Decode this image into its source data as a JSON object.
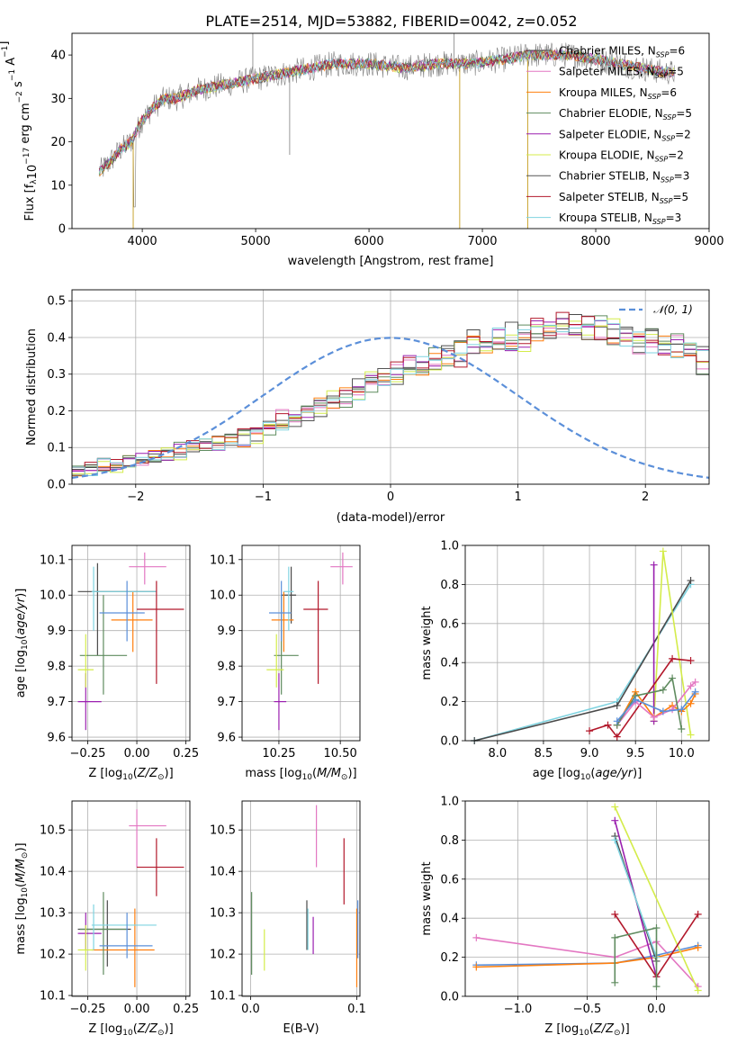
{
  "figure_title": "PLATE=2514, MJD=53882, FIBERID=0042, z=0.052",
  "legend_fits": [
    {
      "label": "Chabrier MILES, N",
      "n": "6",
      "color": "#4a4a4a"
    },
    {
      "label": "Salpeter MILES, N",
      "n": "5",
      "color": "#e377c2"
    },
    {
      "label": "Kroupa MILES, N",
      "n": "6",
      "color": "#ff7f0e"
    },
    {
      "label": "Chabrier ELODIE, N",
      "n": "5",
      "color": "#5f8b5f"
    },
    {
      "label": "Salpeter ELODIE, N",
      "n": "2",
      "color": "#9a1faf"
    },
    {
      "label": "Kroupa ELODIE, N",
      "n": "2",
      "color": "#d4ec4a"
    },
    {
      "label": "Chabrier STELIB, N",
      "n": "3",
      "color": "#555555"
    },
    {
      "label": "Salpeter STELIB, N",
      "n": "5",
      "color": "#b2182b"
    },
    {
      "label": "Kroupa STELIB, N",
      "n": "3",
      "color": "#7fd3e0"
    }
  ],
  "legend_sub": "SSP",
  "chart_data": [
    {
      "type": "line",
      "id": "spectrum",
      "xlabel": "wavelength [Angstrom, rest frame]",
      "ylabel": "Flux [f",
      "ylabel_parts": [
        "Flux [f",
        "λ",
        "10",
        "−17",
        " erg cm",
        "−2",
        " s",
        "−1",
        " A",
        "−1",
        "]"
      ],
      "xlim": [
        3380,
        9000
      ],
      "ylim": [
        0,
        45
      ],
      "xticks": [
        4000,
        5000,
        6000,
        7000,
        8000,
        9000
      ],
      "yticks": [
        0,
        10,
        20,
        30,
        40
      ],
      "continuum": {
        "x": [
          3620,
          3700,
          3800,
          3900,
          4000,
          4100,
          4200,
          4300,
          4400,
          4500,
          4700,
          4900,
          5100,
          5300,
          5500,
          5700,
          6000,
          6300,
          6600,
          6900,
          7200,
          7400,
          7600,
          7800,
          8000,
          8200,
          8400,
          8600,
          8700
        ],
        "y": [
          13,
          15,
          18,
          20,
          25,
          28,
          30,
          30,
          31,
          32,
          33,
          34,
          35,
          36,
          37,
          38,
          38,
          37,
          38,
          38,
          39,
          40,
          40,
          40,
          39,
          38,
          37,
          36,
          36
        ]
      },
      "grid": false
    },
    {
      "type": "bar",
      "id": "residuals",
      "xlabel": "(data-model)/error",
      "ylabel": "Normed distribution",
      "xlim": [
        -2.5,
        2.5
      ],
      "ylim": [
        0,
        0.53
      ],
      "xticks": [
        -2,
        -1,
        0,
        1,
        2
      ],
      "yticks": [
        0.0,
        0.1,
        0.2,
        0.3,
        0.4,
        0.5
      ],
      "legend": "𝒩(0, 1)",
      "bin_width": 0.1,
      "bin_start": -2.5,
      "histogram_profile": [
        0.04,
        0.04,
        0.05,
        0.05,
        0.06,
        0.07,
        0.08,
        0.08,
        0.09,
        0.1,
        0.11,
        0.11,
        0.12,
        0.13,
        0.14,
        0.15,
        0.17,
        0.18,
        0.19,
        0.21,
        0.22,
        0.24,
        0.25,
        0.27,
        0.28,
        0.3,
        0.31,
        0.33,
        0.34,
        0.35,
        0.36,
        0.37,
        0.38,
        0.39,
        0.39,
        0.4,
        0.41,
        0.42,
        0.42,
        0.42,
        0.42,
        0.42,
        0.41,
        0.4,
        0.39,
        0.39,
        0.38,
        0.37,
        0.36,
        0.34,
        0.33,
        0.32,
        0.3,
        0.28,
        0.27,
        0.25,
        0.24,
        0.22,
        0.21,
        0.19,
        0.18,
        0.16,
        0.15,
        0.14,
        0.13,
        0.12,
        0.11,
        0.1,
        0.09,
        0.08,
        0.07,
        0.06,
        0.06,
        0.05,
        0.05,
        0.04,
        0.04,
        0.04,
        0.03,
        0.03,
        0.03,
        0.03,
        0.03,
        0.03,
        0.03,
        0.03,
        0.03,
        0.03,
        0.03,
        0.03,
        0.03,
        0.03,
        0.03,
        0.03,
        0.03,
        0.03,
        0.03,
        0.03,
        0.03,
        0.03
      ],
      "grid": true
    },
    {
      "type": "scatter",
      "id": "age_vs_Z",
      "xlabel": "Z [log",
      "ylabel": "age  [log",
      "xlim": [
        -0.33,
        0.27
      ],
      "ylim": [
        9.59,
        10.14
      ],
      "xticks": [
        -0.25,
        0.0,
        0.25
      ],
      "yticks": [
        9.6,
        9.7,
        9.8,
        9.9,
        10.0,
        10.1
      ],
      "points": [
        {
          "x": -0.2,
          "y": 10.01,
          "xerr": [
            0.3,
            0.0
          ],
          "yerr": [
            0.0,
            0.0
          ],
          "vx": [
            -0.3,
            0.1
          ],
          "vy": [
            9.83,
            10.09
          ],
          "color": "#4a4a4a"
        },
        {
          "x": 0.04,
          "y": 10.08,
          "xerr": [
            0.0,
            0.0
          ],
          "yerr": [
            0.0,
            0.0
          ],
          "vx": [
            -0.04,
            0.15
          ],
          "vy": [
            10.03,
            10.12
          ],
          "color": "#e377c2"
        },
        {
          "x": -0.02,
          "y": 9.93,
          "vx": [
            -0.13,
            0.08
          ],
          "vy": [
            9.84,
            10.01
          ],
          "color": "#ff7f0e"
        },
        {
          "x": -0.17,
          "y": 9.83,
          "vx": [
            -0.29,
            -0.05
          ],
          "vy": [
            9.72,
            10.0
          ],
          "color": "#5f8b5f"
        },
        {
          "x": -0.26,
          "y": 9.7,
          "vx": [
            -0.3,
            -0.18
          ],
          "vy": [
            9.62,
            9.78
          ],
          "color": "#9a1faf"
        },
        {
          "x": -0.26,
          "y": 9.79,
          "vx": [
            -0.3,
            -0.22
          ],
          "vy": [
            9.74,
            9.89
          ],
          "color": "#d4ec4a"
        },
        {
          "x": -0.22,
          "y": 10.01,
          "vx": [
            -0.23,
            0.1
          ],
          "vy": [
            9.9,
            10.08
          ],
          "color": "#7fd3e0"
        },
        {
          "x": 0.1,
          "y": 9.96,
          "vx": [
            0.0,
            0.24
          ],
          "vy": [
            9.75,
            10.04
          ],
          "color": "#b2182b"
        },
        {
          "x": -0.05,
          "y": 9.95,
          "vx": [
            -0.19,
            0.04
          ],
          "vy": [
            9.87,
            10.04
          ],
          "color": "#5b8fd9"
        }
      ],
      "grid": true
    },
    {
      "type": "scatter",
      "id": "age_vs_mass",
      "xlabel": "mass [log",
      "ylabel": "",
      "xlim": [
        10.1,
        10.58
      ],
      "ylim": [
        9.59,
        10.14
      ],
      "xticks": [
        10.25,
        10.5
      ],
      "yticks": [
        9.6,
        9.7,
        9.8,
        9.9,
        10.0,
        10.1
      ],
      "points": [
        {
          "vx": [
            10.26,
            10.32
          ],
          "vy": [
            9.92,
            10.08
          ],
          "x": 10.3,
          "y": 10.0,
          "color": "#4a4a4a"
        },
        {
          "vx": [
            10.46,
            10.55
          ],
          "vy": [
            10.03,
            10.12
          ],
          "x": 10.51,
          "y": 10.08,
          "color": "#e377c2"
        },
        {
          "vx": [
            10.22,
            10.31
          ],
          "vy": [
            9.84,
            10.01
          ],
          "x": 10.27,
          "y": 9.93,
          "color": "#ff7f0e"
        },
        {
          "vx": [
            10.23,
            10.33
          ],
          "vy": [
            9.72,
            10.0
          ],
          "x": 10.26,
          "y": 9.83,
          "color": "#5f8b5f"
        },
        {
          "vx": [
            10.23,
            10.28
          ],
          "vy": [
            9.62,
            9.78
          ],
          "x": 10.25,
          "y": 9.7,
          "color": "#9a1faf"
        },
        {
          "vx": [
            10.2,
            10.27
          ],
          "vy": [
            9.74,
            9.89
          ],
          "x": 10.24,
          "y": 9.79,
          "color": "#d4ec4a"
        },
        {
          "vx": [
            10.27,
            10.31
          ],
          "vy": [
            9.9,
            10.08
          ],
          "x": 10.29,
          "y": 10.01,
          "color": "#7fd3e0"
        },
        {
          "vx": [
            10.35,
            10.45
          ],
          "vy": [
            9.75,
            10.04
          ],
          "x": 10.41,
          "y": 9.96,
          "color": "#b2182b"
        },
        {
          "vx": [
            10.21,
            10.3
          ],
          "vy": [
            9.87,
            10.04
          ],
          "x": 10.26,
          "y": 9.95,
          "color": "#5b8fd9"
        }
      ],
      "grid": true
    },
    {
      "type": "line",
      "id": "weight_vs_age",
      "xlabel": "age  [log",
      "ylabel": "mass weight",
      "xlim": [
        7.65,
        10.3
      ],
      "ylim": [
        0,
        1.0
      ],
      "xticks": [
        8.0,
        8.5,
        9.0,
        9.5,
        10.0
      ],
      "yticks": [
        0.0,
        0.2,
        0.4,
        0.6,
        0.8,
        1.0
      ],
      "series": [
        {
          "color": "#7fd3e0",
          "x": [
            7.75,
            9.3,
            10.1
          ],
          "y": [
            0.0,
            0.2,
            0.8
          ]
        },
        {
          "color": "#4a4a4a",
          "x": [
            7.75,
            9.3,
            10.1
          ],
          "y": [
            0.0,
            0.18,
            0.82
          ]
        },
        {
          "color": "#d4ec4a",
          "x": [
            9.7,
            9.8,
            10.1
          ],
          "y": [
            0.1,
            0.97,
            0.03
          ]
        },
        {
          "color": "#9a1faf",
          "x": [
            9.7,
            9.7
          ],
          "y": [
            0.9,
            0.1
          ]
        },
        {
          "color": "#b2182b",
          "x": [
            9.0,
            9.2,
            9.3,
            9.9,
            10.1
          ],
          "y": [
            0.05,
            0.08,
            0.02,
            0.42,
            0.41
          ]
        },
        {
          "color": "#ff7f0e",
          "x": [
            9.3,
            9.5,
            9.7,
            9.9,
            10.0,
            10.1,
            10.15
          ],
          "y": [
            0.08,
            0.25,
            0.12,
            0.18,
            0.15,
            0.19,
            0.24
          ]
        },
        {
          "color": "#e377c2",
          "x": [
            9.3,
            9.5,
            9.7,
            9.9,
            10.1,
            10.15
          ],
          "y": [
            0.08,
            0.2,
            0.12,
            0.16,
            0.28,
            0.3
          ]
        },
        {
          "color": "#5f8b5f",
          "x": [
            9.3,
            9.5,
            9.8,
            9.9,
            10.0
          ],
          "y": [
            0.08,
            0.23,
            0.26,
            0.32,
            0.06
          ]
        },
        {
          "color": "#5b8fd9",
          "x": [
            9.3,
            9.5,
            9.8,
            10.0,
            10.15
          ],
          "y": [
            0.1,
            0.21,
            0.15,
            0.16,
            0.25
          ]
        }
      ],
      "grid": true
    },
    {
      "type": "scatter",
      "id": "mass_vs_Z",
      "xlabel": "Z [log",
      "ylabel": "mass [log",
      "xlim": [
        -0.33,
        0.27
      ],
      "ylim": [
        10.098,
        10.57
      ],
      "xticks": [
        -0.25,
        0.0,
        0.25
      ],
      "yticks": [
        10.1,
        10.2,
        10.3,
        10.4,
        10.5
      ],
      "points": [
        {
          "vx": [
            -0.3,
            -0.03
          ],
          "vy": [
            10.17,
            10.33
          ],
          "x": -0.15,
          "y": 10.26,
          "color": "#4a4a4a"
        },
        {
          "vx": [
            -0.04,
            0.15
          ],
          "vy": [
            10.41,
            10.55
          ],
          "x": 0.0,
          "y": 10.51,
          "color": "#e377c2"
        },
        {
          "vx": [
            -0.23,
            0.09
          ],
          "vy": [
            10.12,
            10.31
          ],
          "x": -0.01,
          "y": 10.21,
          "color": "#ff7f0e"
        },
        {
          "vx": [
            -0.29,
            -0.05
          ],
          "vy": [
            10.15,
            10.35
          ],
          "x": -0.17,
          "y": 10.26,
          "color": "#5f8b5f"
        },
        {
          "vx": [
            -0.3,
            -0.18
          ],
          "vy": [
            10.21,
            10.3
          ],
          "x": -0.26,
          "y": 10.25,
          "color": "#9a1faf"
        },
        {
          "vx": [
            -0.3,
            -0.22
          ],
          "vy": [
            10.16,
            10.27
          ],
          "x": -0.26,
          "y": 10.21,
          "color": "#d4ec4a"
        },
        {
          "vx": [
            -0.23,
            0.1
          ],
          "vy": [
            10.21,
            10.32
          ],
          "x": -0.22,
          "y": 10.27,
          "color": "#7fd3e0"
        },
        {
          "vx": [
            0.0,
            0.24
          ],
          "vy": [
            10.34,
            10.48
          ],
          "x": 0.1,
          "y": 10.41,
          "color": "#b2182b"
        },
        {
          "vx": [
            -0.19,
            0.08
          ],
          "vy": [
            10.19,
            10.3
          ],
          "x": -0.05,
          "y": 10.22,
          "color": "#5b8fd9"
        }
      ],
      "grid": true
    },
    {
      "type": "scatter",
      "id": "mass_vs_ebv",
      "xlabel": "E(B-V)",
      "ylabel": "",
      "xlim": [
        -0.008,
        0.103
      ],
      "ylim": [
        10.098,
        10.57
      ],
      "xticks": [
        0.0,
        0.1
      ],
      "yticks": [
        10.1,
        10.2,
        10.3,
        10.4,
        10.5
      ],
      "points": [
        {
          "x": 0.001,
          "vy": [
            10.15,
            10.35
          ],
          "color": "#5f8b5f"
        },
        {
          "x": 0.013,
          "vy": [
            10.16,
            10.26
          ],
          "color": "#d4ec4a"
        },
        {
          "x": 0.053,
          "vy": [
            10.21,
            10.33
          ],
          "color": "#4a4a4a"
        },
        {
          "x": 0.054,
          "vy": [
            10.21,
            10.31
          ],
          "color": "#7fd3e0"
        },
        {
          "x": 0.059,
          "vy": [
            10.2,
            10.29
          ],
          "color": "#9a1faf"
        },
        {
          "x": 0.062,
          "vy": [
            10.41,
            10.56
          ],
          "color": "#e377c2"
        },
        {
          "x": 0.088,
          "vy": [
            10.32,
            10.48
          ],
          "color": "#b2182b"
        },
        {
          "x": 0.1,
          "vy": [
            10.12,
            10.31
          ],
          "color": "#ff7f0e"
        },
        {
          "x": 0.101,
          "vy": [
            10.19,
            10.33
          ],
          "color": "#5b8fd9"
        }
      ],
      "grid": true
    },
    {
      "type": "line",
      "id": "weight_vs_Z",
      "xlabel": "Z [log",
      "ylabel": "mass weight",
      "xlim": [
        -1.38,
        0.38
      ],
      "ylim": [
        0,
        1.0
      ],
      "xticks": [
        -1.0,
        -0.5,
        0.0
      ],
      "yticks": [
        0.0,
        0.2,
        0.4,
        0.6,
        0.8,
        1.0
      ],
      "series": [
        {
          "color": "#e377c2",
          "x": [
            -1.3,
            -0.3,
            0.0,
            0.3
          ],
          "y": [
            0.3,
            0.2,
            0.28,
            0.05
          ]
        },
        {
          "color": "#5b8fd9",
          "x": [
            -1.3,
            -0.3,
            0.0,
            0.3
          ],
          "y": [
            0.16,
            0.17,
            0.21,
            0.26
          ]
        },
        {
          "color": "#ff7f0e",
          "x": [
            -1.3,
            -0.3,
            0.0,
            0.3
          ],
          "y": [
            0.15,
            0.17,
            0.2,
            0.25
          ]
        },
        {
          "color": "#d4ec4a",
          "x": [
            -0.3,
            0.3
          ],
          "y": [
            0.97,
            0.03
          ]
        },
        {
          "color": "#9a1faf",
          "x": [
            -0.3,
            0.0
          ],
          "y": [
            0.9,
            0.1
          ]
        },
        {
          "color": "#4a4a4a",
          "x": [
            -0.3,
            0.0
          ],
          "y": [
            0.82,
            0.18
          ]
        },
        {
          "color": "#7fd3e0",
          "x": [
            -0.3,
            0.0
          ],
          "y": [
            0.8,
            0.2
          ]
        },
        {
          "color": "#b2182b",
          "x": [
            -0.3,
            0.0,
            0.3
          ],
          "y": [
            0.42,
            0.1,
            0.42
          ]
        },
        {
          "color": "#5f8b5f",
          "x": [
            -0.3,
            -0.3,
            0.0,
            0.0
          ],
          "y": [
            0.07,
            0.3,
            0.35,
            0.05
          ]
        }
      ],
      "grid": true
    }
  ]
}
